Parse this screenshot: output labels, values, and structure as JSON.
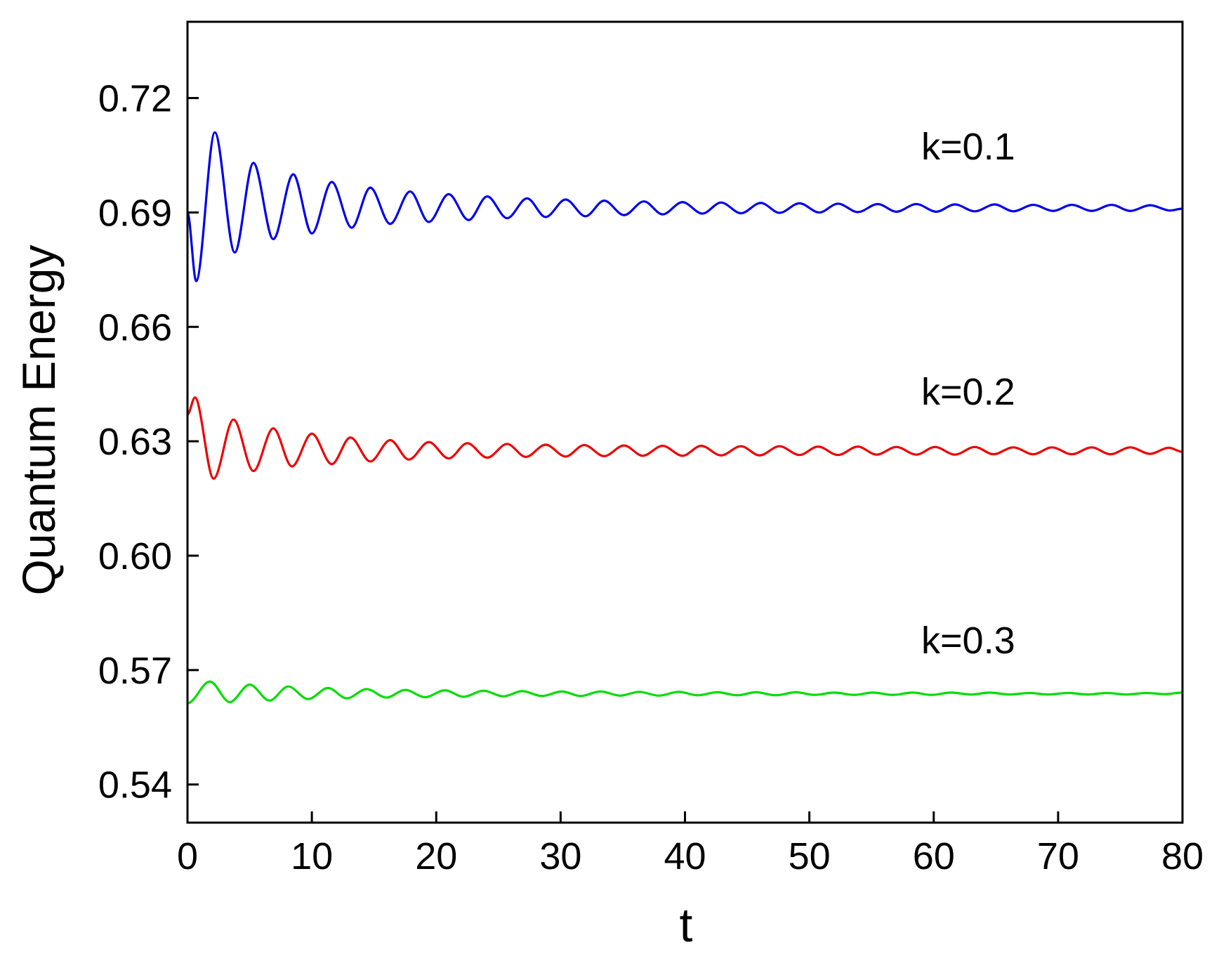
{
  "chart_data": {
    "type": "line",
    "xlabel": "t",
    "ylabel": "Quantum Energy",
    "xlim": [
      0,
      80
    ],
    "xticks": [
      0,
      10,
      20,
      30,
      40,
      50,
      60,
      70,
      80
    ],
    "ylim": [
      0.53,
      0.74
    ],
    "yticks": [
      {
        "value": 0.54,
        "label": "0.54"
      },
      {
        "value": 0.57,
        "label": "0.57"
      },
      {
        "value": 0.6,
        "label": "0.60"
      },
      {
        "value": 0.63,
        "label": "0.63"
      },
      {
        "value": 0.66,
        "label": "0.66"
      },
      {
        "value": 0.69,
        "label": "0.69"
      },
      {
        "value": 0.72,
        "label": "0.72"
      }
    ],
    "annotations": [
      "k=0.1",
      "k=0.2",
      "k=0.3"
    ],
    "series": [
      {
        "color": "#0000ee",
        "x": [
          0,
          0.7,
          2.2,
          3.8,
          5.3,
          6.9,
          8.5,
          10.0,
          11.6,
          13.2,
          14.7,
          16.3,
          17.9,
          19.4,
          21.0,
          22.6,
          24.1,
          25.7,
          27.3,
          28.8,
          30.4,
          32.0,
          33.5,
          35.1,
          36.7,
          38.2,
          39.8,
          41.4,
          42.9,
          44.5,
          46.1,
          47.6,
          49.2,
          50.8,
          52.3,
          53.9,
          55.5,
          57.0,
          58.6,
          60.2,
          61.7,
          63.3,
          64.9,
          66.4,
          68.0,
          69.6,
          71.1,
          72.7,
          74.3,
          75.8,
          77.4,
          79.0,
          80
        ],
        "values": [
          0.69,
          0.672,
          0.711,
          0.6795,
          0.703,
          0.683,
          0.7,
          0.6845,
          0.698,
          0.686,
          0.6965,
          0.687,
          0.6955,
          0.6875,
          0.6948,
          0.688,
          0.6942,
          0.6885,
          0.6937,
          0.6888,
          0.6934,
          0.689,
          0.6931,
          0.6893,
          0.6929,
          0.6895,
          0.6927,
          0.6897,
          0.6926,
          0.6898,
          0.6925,
          0.6899,
          0.6924,
          0.69,
          0.6923,
          0.6901,
          0.6922,
          0.6902,
          0.6922,
          0.6902,
          0.6921,
          0.6903,
          0.6921,
          0.6903,
          0.692,
          0.6904,
          0.692,
          0.6904,
          0.692,
          0.6904,
          0.6919,
          0.6905,
          0.691
        ]
      },
      {
        "color": "#ee0000",
        "x": [
          0,
          0.6,
          2.1,
          3.7,
          5.3,
          6.9,
          8.4,
          10.0,
          11.6,
          13.1,
          14.7,
          16.3,
          17.8,
          19.4,
          21.0,
          22.5,
          24.1,
          25.7,
          27.2,
          28.8,
          30.4,
          31.9,
          33.5,
          35.1,
          36.6,
          38.2,
          39.8,
          41.3,
          42.9,
          44.5,
          46.0,
          47.6,
          49.2,
          50.7,
          52.3,
          53.9,
          55.4,
          57.0,
          58.6,
          60.1,
          61.7,
          63.3,
          64.8,
          66.4,
          68.0,
          69.5,
          71.1,
          72.7,
          74.2,
          75.8,
          77.4,
          78.9,
          80
        ],
        "values": [
          0.637,
          0.6415,
          0.6202,
          0.6357,
          0.6222,
          0.6334,
          0.6234,
          0.632,
          0.624,
          0.631,
          0.6247,
          0.6303,
          0.6252,
          0.6298,
          0.6255,
          0.6295,
          0.6257,
          0.6293,
          0.6259,
          0.6291,
          0.626,
          0.629,
          0.6261,
          0.6289,
          0.6262,
          0.6288,
          0.6262,
          0.6288,
          0.6263,
          0.6287,
          0.6263,
          0.6287,
          0.6264,
          0.6286,
          0.6264,
          0.6286,
          0.6265,
          0.6285,
          0.6265,
          0.6285,
          0.6265,
          0.6285,
          0.6266,
          0.6284,
          0.6266,
          0.6284,
          0.6266,
          0.6284,
          0.6266,
          0.6284,
          0.6267,
          0.6283,
          0.6272
        ]
      },
      {
        "color": "#00dd00",
        "x": [
          0,
          1.8,
          3.4,
          5.0,
          6.6,
          8.1,
          9.7,
          11.3,
          12.8,
          14.4,
          16.0,
          17.5,
          19.1,
          20.7,
          22.2,
          23.8,
          25.4,
          26.9,
          28.5,
          30.1,
          31.6,
          33.2,
          34.8,
          36.3,
          37.9,
          39.5,
          41.0,
          42.6,
          44.2,
          45.7,
          47.3,
          48.9,
          50.4,
          52.0,
          53.6,
          55.1,
          56.7,
          58.3,
          59.8,
          61.4,
          63.0,
          64.5,
          66.1,
          67.7,
          69.2,
          70.8,
          72.4,
          73.9,
          75.5,
          77.1,
          78.6,
          80
        ],
        "values": [
          0.5613,
          0.567,
          0.5616,
          0.5662,
          0.562,
          0.5657,
          0.5624,
          0.5653,
          0.5626,
          0.565,
          0.5628,
          0.5648,
          0.5629,
          0.5647,
          0.563,
          0.5646,
          0.5631,
          0.5645,
          0.5632,
          0.5644,
          0.5632,
          0.5644,
          0.5633,
          0.5643,
          0.5633,
          0.5643,
          0.5634,
          0.5642,
          0.5634,
          0.5642,
          0.5634,
          0.5642,
          0.5635,
          0.5641,
          0.5635,
          0.5641,
          0.5635,
          0.5641,
          0.5635,
          0.5641,
          0.5636,
          0.5641,
          0.5636,
          0.564,
          0.5636,
          0.564,
          0.5636,
          0.564,
          0.5636,
          0.564,
          0.5637,
          0.5641
        ]
      }
    ]
  }
}
